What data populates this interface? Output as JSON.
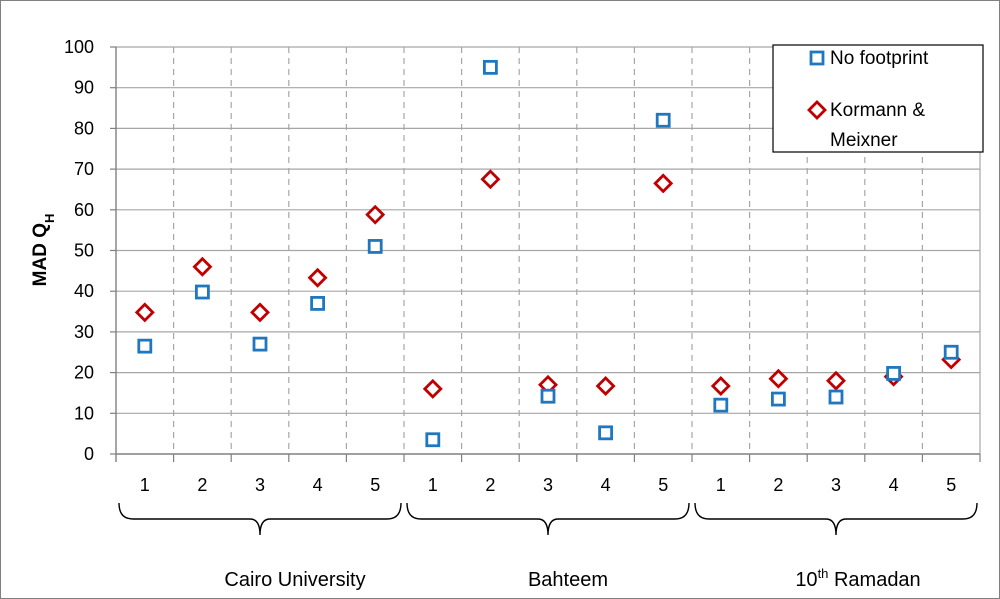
{
  "chart_data": {
    "type": "scatter",
    "ylabel_main": "MAD Q",
    "ylabel_sub": "H",
    "ylim": [
      0,
      100
    ],
    "yticks": [
      0,
      10,
      20,
      30,
      40,
      50,
      60,
      70,
      80,
      90,
      100
    ],
    "grid": true,
    "legend_position": "top-right",
    "groups": [
      {
        "label": "Cairo University",
        "label_sup": "",
        "categories": [
          "1",
          "2",
          "3",
          "4",
          "5"
        ]
      },
      {
        "label": "Bahteem",
        "label_sup": "",
        "categories": [
          "1",
          "2",
          "3",
          "4",
          "5"
        ]
      },
      {
        "label_prefix": "10",
        "label_sup": "th",
        "label": " Ramadan",
        "categories": [
          "1",
          "2",
          "3",
          "4",
          "5"
        ]
      }
    ],
    "series": [
      {
        "name": "No footprint",
        "marker": "square",
        "color": "#1f77c0",
        "values": [
          26.5,
          39.8,
          27.0,
          37.0,
          51.0,
          3.5,
          95.0,
          14.2,
          5.2,
          82.0,
          12.0,
          13.5,
          14.0,
          19.8,
          25.0
        ]
      },
      {
        "name_line1": "Kormann &",
        "name_line2": "Meixner",
        "marker": "diamond",
        "color": "#c00000",
        "values": [
          34.8,
          46.0,
          34.8,
          43.3,
          58.8,
          16.0,
          67.5,
          17.0,
          16.7,
          66.5,
          16.7,
          18.5,
          18.0,
          19.0,
          23.2
        ]
      }
    ]
  }
}
